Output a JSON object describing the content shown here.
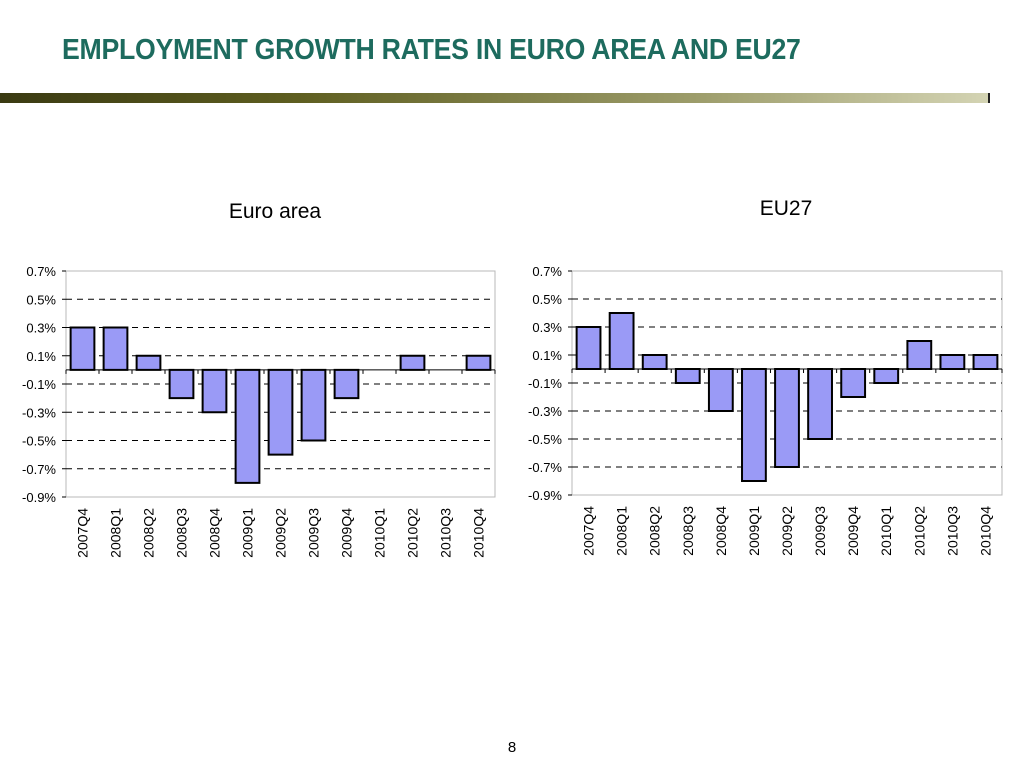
{
  "slide": {
    "title": "EMPLOYMENT GROWTH RATES IN EURO AREA AND EU27",
    "page_number": "8"
  },
  "colors": {
    "title": "#1d6b5e",
    "bar_fill": "#9a9af6",
    "bar_stroke": "#000000"
  },
  "chart_data": [
    {
      "type": "bar",
      "title": "Euro area",
      "categories": [
        "2007Q4",
        "2008Q1",
        "2008Q2",
        "2008Q3",
        "2008Q4",
        "2009Q1",
        "2009Q2",
        "2009Q3",
        "2009Q4",
        "2010Q1",
        "2010Q2",
        "2010Q3",
        "2010Q4"
      ],
      "values": [
        0.3,
        0.3,
        0.1,
        -0.2,
        -0.3,
        -0.8,
        -0.6,
        -0.5,
        -0.2,
        0.0,
        0.1,
        0.0,
        0.1
      ],
      "ylim": [
        -0.9,
        0.7
      ],
      "yticks": [
        "0.7%",
        "0.5%",
        "0.3%",
        "0.1%",
        "-0.1%",
        "-0.3%",
        "-0.5%",
        "-0.7%",
        "-0.9%"
      ],
      "grid": "dashed horizontal",
      "legend": "none"
    },
    {
      "type": "bar",
      "title": "EU27",
      "categories": [
        "2007Q4",
        "2008Q1",
        "2008Q2",
        "2008Q3",
        "2008Q4",
        "2009Q1",
        "2009Q2",
        "2009Q3",
        "2009Q4",
        "2010Q1",
        "2010Q2",
        "2010Q3",
        "2010Q4"
      ],
      "values": [
        0.3,
        0.4,
        0.1,
        -0.1,
        -0.3,
        -0.8,
        -0.7,
        -0.5,
        -0.2,
        -0.1,
        0.2,
        0.1,
        0.1
      ],
      "ylim": [
        -0.9,
        0.7
      ],
      "yticks": [
        "0.7%",
        "0.5%",
        "0.3%",
        "0.1%",
        "-0.1%",
        "-0.3%",
        "-0.5%",
        "-0.7%",
        "-0.9%"
      ],
      "grid": "dashed horizontal",
      "legend": "none"
    }
  ]
}
